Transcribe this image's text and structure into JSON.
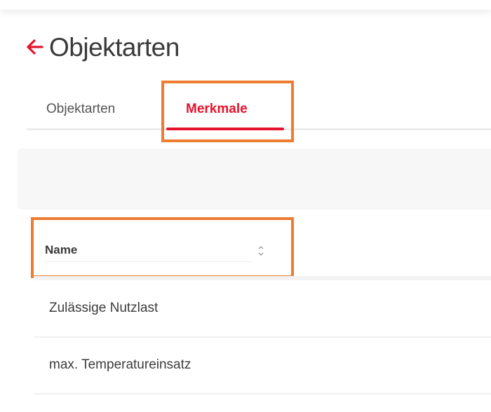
{
  "header": {
    "title": "Objektarten",
    "back_icon": "arrow-left-icon"
  },
  "tabs": [
    {
      "label": "Objektarten",
      "active": false
    },
    {
      "label": "Merkmale",
      "active": true
    }
  ],
  "table": {
    "columns": [
      {
        "label": "Name",
        "sort_icon": "sort-icon"
      }
    ],
    "rows": [
      {
        "name": "Zulässige Nutzlast"
      },
      {
        "name": "max. Temperatureinsatz"
      }
    ]
  },
  "colors": {
    "accent": "#e4142c",
    "highlight": "#ec7d31"
  }
}
